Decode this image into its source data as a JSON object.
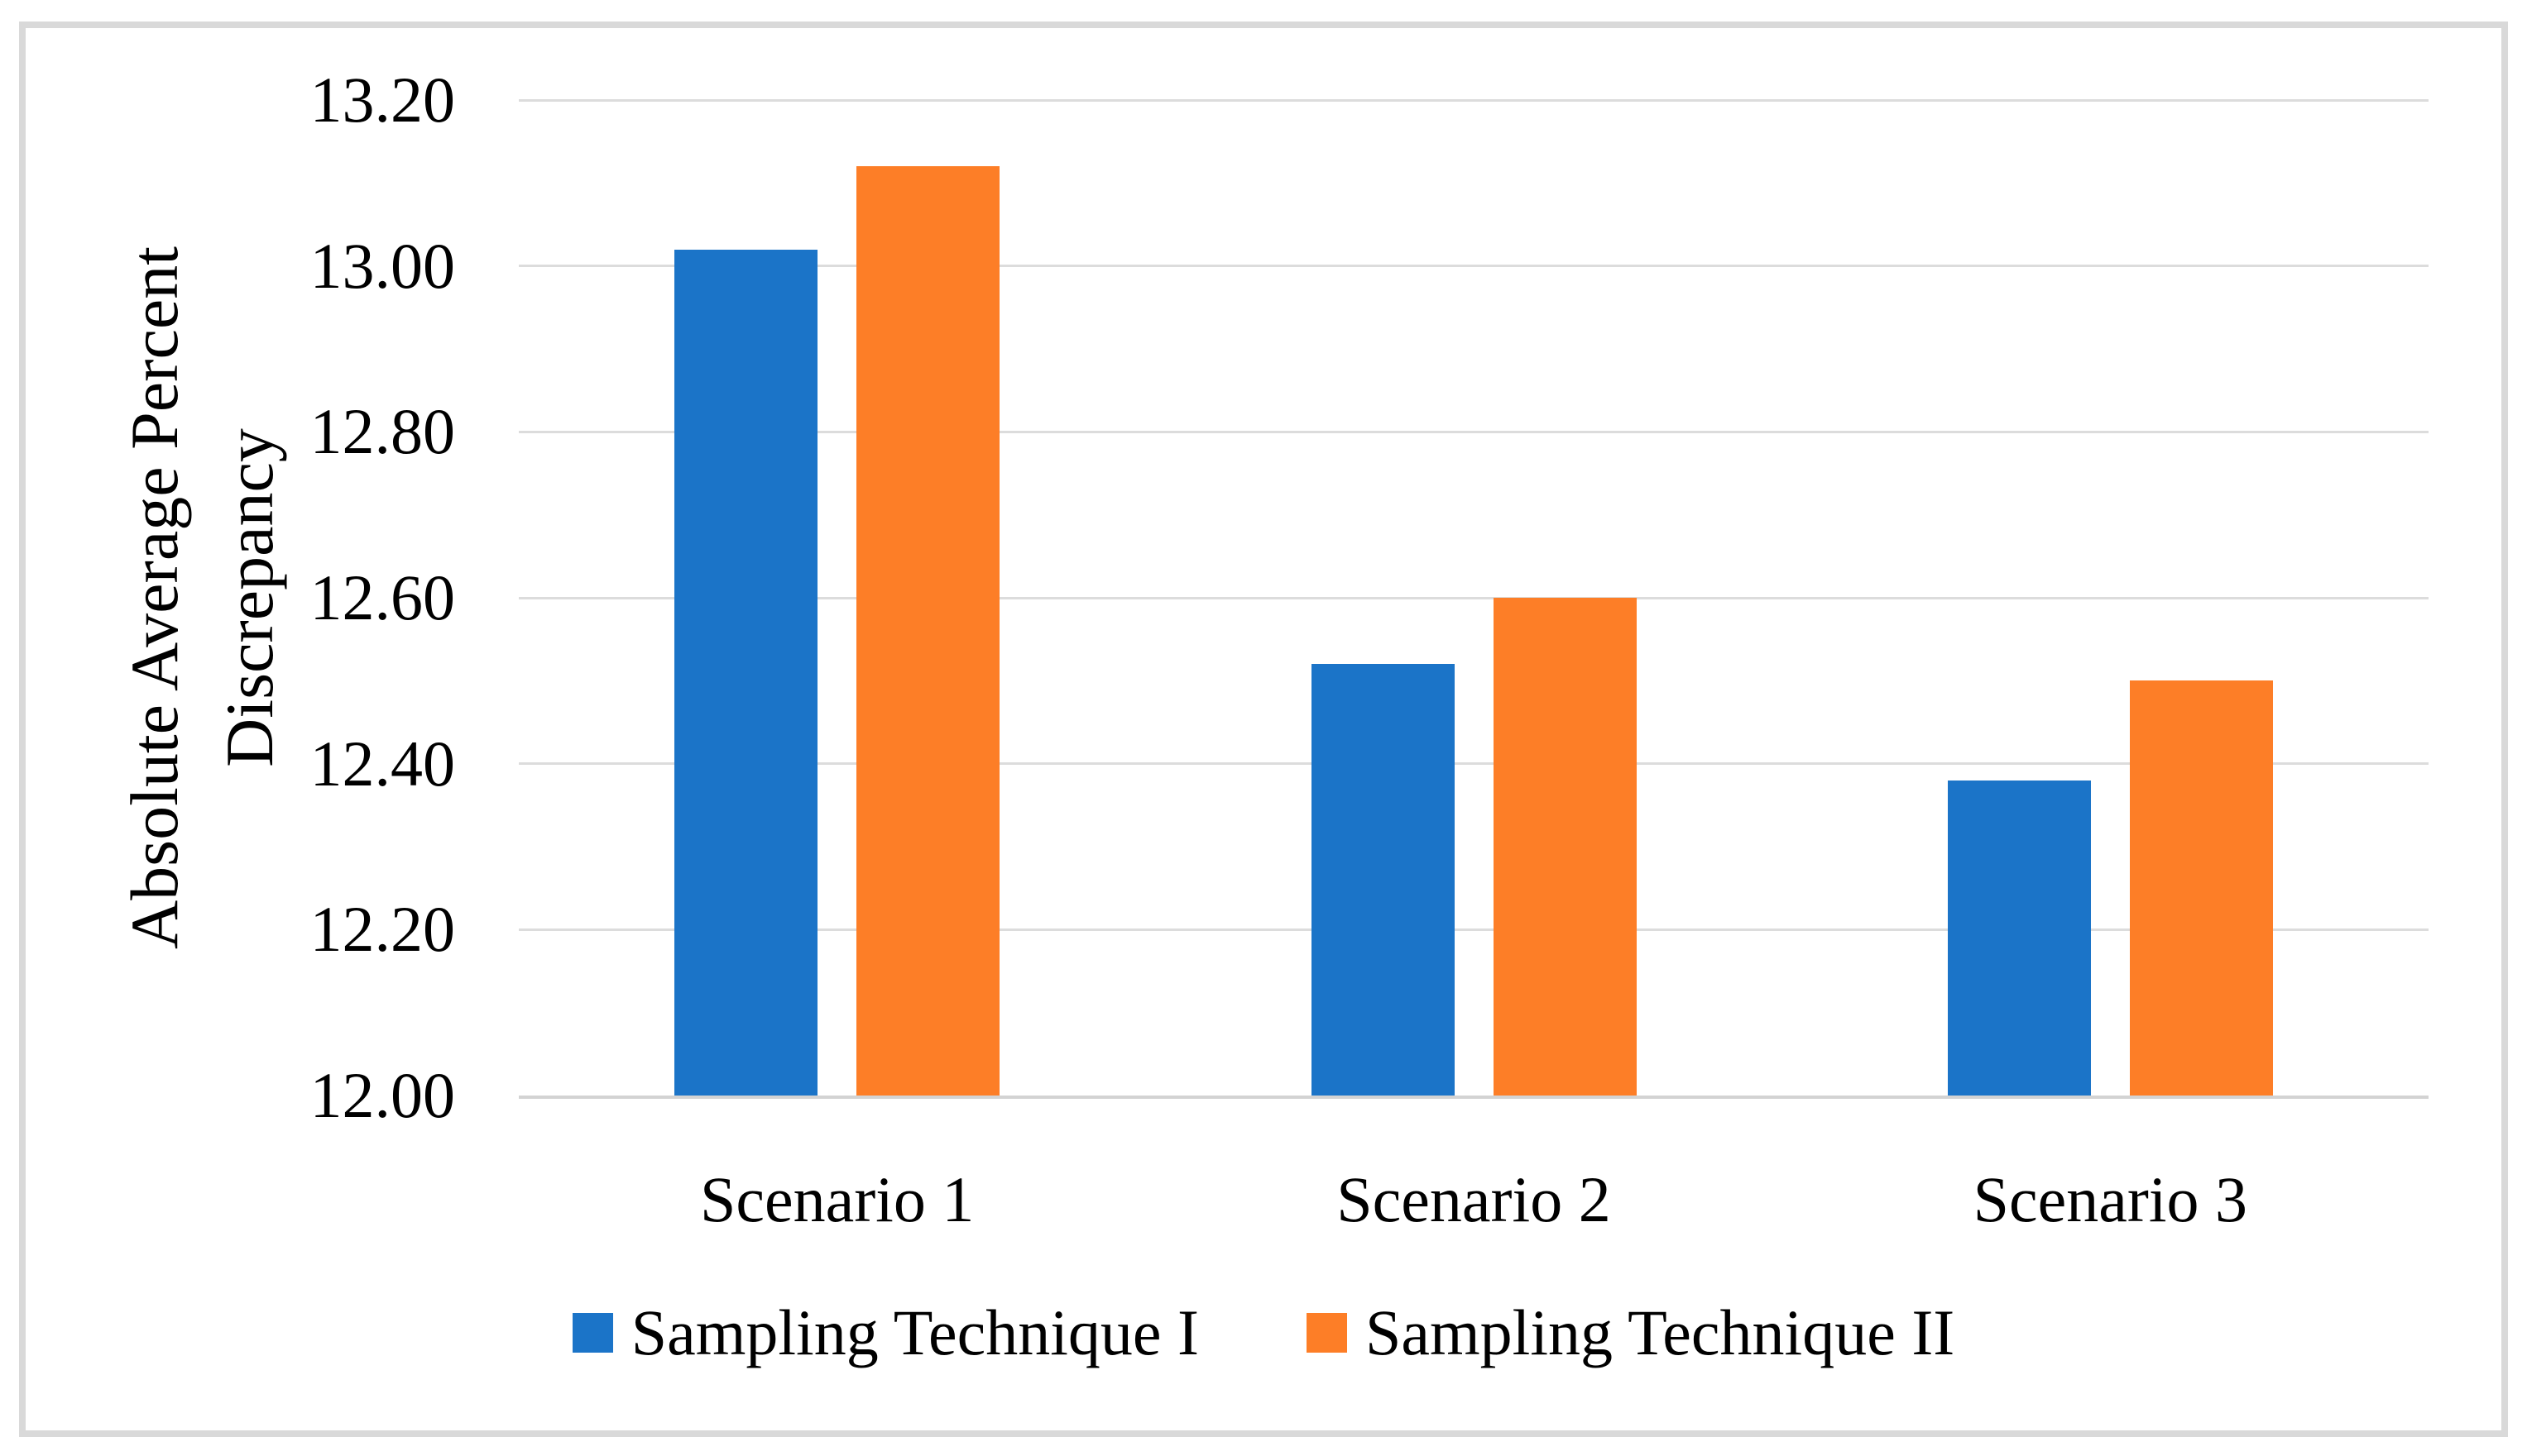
{
  "figure": {
    "background_color": "#FFFFFF",
    "border_color": "#D9D9D9"
  },
  "chart_data": {
    "type": "bar",
    "title": "",
    "categories": [
      "Scenario 1",
      "Scenario 2",
      "Scenario 3"
    ],
    "series": [
      {
        "name": "Sampling Technique I",
        "color": "#1B74C8",
        "values": [
          13.02,
          12.52,
          12.38
        ]
      },
      {
        "name": "Sampling Technique II",
        "color": "#FD7E27",
        "values": [
          13.12,
          12.6,
          12.5
        ]
      }
    ],
    "xlabel": "",
    "ylabel": "Absolute Average Percent Discrepancy",
    "ylabel_lines": [
      "Absolute Average Percent",
      "Discrepancy"
    ],
    "ylim": [
      12.0,
      13.2
    ],
    "ytick_step": 0.2,
    "yticks": [
      "13.20",
      "13.00",
      "12.80",
      "12.60",
      "12.40",
      "12.20",
      "12.00"
    ],
    "grid": "horizontal",
    "gridline_color": "#DCDCDC",
    "axis_line_color": "#D3D3D3",
    "legend_position": "bottom"
  }
}
